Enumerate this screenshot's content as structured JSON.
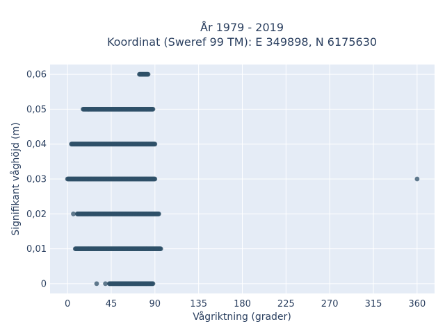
{
  "chart_data": {
    "type": "scatter",
    "title_line1": "År 1979 - 2019",
    "title_line2": "Koordinat (Sweref 99 TM): E 349898, N 6175630",
    "xlabel": "Vågriktning (grader)",
    "ylabel": "Signifikant våghöjd (m)",
    "xlim": [
      -18,
      378
    ],
    "ylim": [
      -0.0028,
      0.0628
    ],
    "x_ticks": [
      0,
      45,
      90,
      135,
      180,
      225,
      270,
      315,
      360
    ],
    "x_tick_labels": [
      "0",
      "45",
      "90",
      "135",
      "180",
      "225",
      "270",
      "315",
      "360"
    ],
    "y_ticks": [
      0,
      0.01,
      0.02,
      0.03,
      0.04,
      0.05,
      0.06
    ],
    "y_tick_labels": [
      "0",
      "0,01",
      "0,02",
      "0,03",
      "0,04",
      "0,05",
      "0,06"
    ],
    "grid": true,
    "colors": {
      "background": "#e5ecf6",
      "grid": "#ffffff",
      "marker": "#2f5068",
      "text": "#2a3f5f"
    },
    "series": [
      {
        "marker": "circle",
        "bands": [
          {
            "y": 0,
            "x_min": 43,
            "x_max": 88,
            "sparse": [
              30,
              39
            ]
          },
          {
            "y": 0.01,
            "x_min": 8,
            "x_max": 96,
            "sparse": []
          },
          {
            "y": 0.02,
            "x_min": 10,
            "x_max": 94,
            "sparse": [
              6
            ]
          },
          {
            "y": 0.03,
            "x_min": 0,
            "x_max": 90,
            "sparse": [
              360
            ]
          },
          {
            "y": 0.04,
            "x_min": 4,
            "x_max": 90,
            "sparse": []
          },
          {
            "y": 0.05,
            "x_min": 16,
            "x_max": 88,
            "sparse": []
          },
          {
            "y": 0.06,
            "x_min": 74,
            "x_max": 83,
            "sparse": []
          }
        ]
      }
    ]
  }
}
